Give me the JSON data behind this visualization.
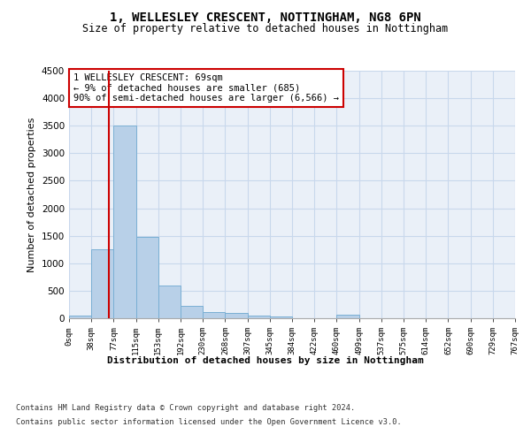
{
  "title": "1, WELLESLEY CRESCENT, NOTTINGHAM, NG8 6PN",
  "subtitle": "Size of property relative to detached houses in Nottingham",
  "xlabel": "Distribution of detached houses by size in Nottingham",
  "ylabel": "Number of detached properties",
  "bar_color": "#b8d0e8",
  "bar_edge_color": "#7aafd4",
  "grid_color": "#c8d8ec",
  "background_color": "#eaf0f8",
  "bin_labels": [
    "0sqm",
    "38sqm",
    "77sqm",
    "115sqm",
    "153sqm",
    "192sqm",
    "230sqm",
    "268sqm",
    "307sqm",
    "345sqm",
    "384sqm",
    "422sqm",
    "460sqm",
    "499sqm",
    "537sqm",
    "575sqm",
    "614sqm",
    "652sqm",
    "690sqm",
    "729sqm",
    "767sqm"
  ],
  "bar_values": [
    50,
    1250,
    3500,
    1480,
    600,
    230,
    120,
    90,
    50,
    30,
    5,
    0,
    60,
    0,
    0,
    0,
    0,
    0,
    0,
    0
  ],
  "ylim": [
    0,
    4500
  ],
  "yticks": [
    0,
    500,
    1000,
    1500,
    2000,
    2500,
    3000,
    3500,
    4000,
    4500
  ],
  "property_sqm": 69,
  "bin_edges_sqm": [
    0,
    38,
    77,
    115,
    153,
    192,
    230,
    268,
    307,
    345,
    384,
    422,
    460,
    499,
    537,
    575,
    614,
    652,
    690,
    729,
    767
  ],
  "annotation_text": "1 WELLESLEY CRESCENT: 69sqm\n← 9% of detached houses are smaller (685)\n90% of semi-detached houses are larger (6,566) →",
  "annotation_box_color": "#ffffff",
  "annotation_box_edge": "#cc0000",
  "property_line_color": "#cc0000",
  "footer_line1": "Contains HM Land Registry data © Crown copyright and database right 2024.",
  "footer_line2": "Contains public sector information licensed under the Open Government Licence v3.0."
}
